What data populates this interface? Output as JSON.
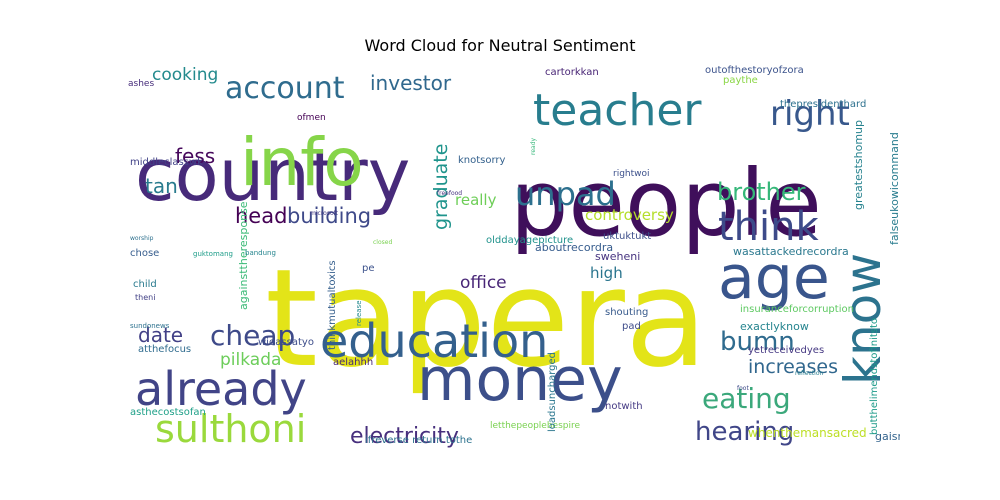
{
  "figure": {
    "title": "Word Cloud for Neutral Sentiment"
  },
  "chart_data": {
    "type": "wordcloud",
    "title": "Word Cloud for Neutral Sentiment",
    "words": [
      {
        "text": "tapera",
        "weight": 100,
        "color": "#e3e418"
      },
      {
        "text": "people",
        "weight": 86,
        "color": "#3f0f5b"
      },
      {
        "text": "country",
        "weight": 70,
        "color": "#472a7a"
      },
      {
        "text": "money",
        "weight": 60,
        "color": "#3c4f8a"
      },
      {
        "text": "education",
        "weight": 48,
        "color": "#34608d"
      },
      {
        "text": "know",
        "weight": 46,
        "color": "#2c738e"
      },
      {
        "text": "info",
        "weight": 46,
        "color": "#86d549"
      },
      {
        "text": "already",
        "weight": 44,
        "color": "#414487"
      },
      {
        "text": "teacher",
        "weight": 42,
        "color": "#287d8e"
      },
      {
        "text": "age",
        "weight": 42,
        "color": "#39558c"
      },
      {
        "text": "think",
        "weight": 38,
        "color": "#3d4a89"
      },
      {
        "text": "sulthoni",
        "weight": 34,
        "color": "#9ad93c"
      },
      {
        "text": "unpad",
        "weight": 32,
        "color": "#2d708e"
      },
      {
        "text": "right",
        "weight": 32,
        "color": "#38588c"
      },
      {
        "text": "account",
        "weight": 30,
        "color": "#2f6c8e"
      },
      {
        "text": "cheap",
        "weight": 28,
        "color": "#3e4a89"
      },
      {
        "text": "eating",
        "weight": 28,
        "color": "#3ba87b"
      },
      {
        "text": "hearing",
        "weight": 26,
        "color": "#404688"
      },
      {
        "text": "bumn",
        "weight": 26,
        "color": "#2f6b8e"
      },
      {
        "text": "brother",
        "weight": 24,
        "color": "#35b779"
      },
      {
        "text": "electricity",
        "weight": 22,
        "color": "#472f7d"
      },
      {
        "text": "building",
        "weight": 21,
        "color": "#3e4989"
      },
      {
        "text": "head",
        "weight": 21,
        "color": "#440154"
      },
      {
        "text": "investor",
        "weight": 20,
        "color": "#30688e"
      },
      {
        "text": "fess",
        "weight": 20,
        "color": "#46085c"
      },
      {
        "text": "tan",
        "weight": 20,
        "color": "#297b8e"
      },
      {
        "text": "date",
        "weight": 20,
        "color": "#424086"
      },
      {
        "text": "increases",
        "weight": 19,
        "color": "#31678e"
      },
      {
        "text": "graduate",
        "weight": 19,
        "color": "#1f948c"
      },
      {
        "text": "cooking",
        "weight": 17,
        "color": "#238a8d"
      },
      {
        "text": "pilkada",
        "weight": 17,
        "color": "#6ccd5a"
      },
      {
        "text": "office",
        "weight": 17,
        "color": "#482677"
      },
      {
        "text": "controversy",
        "weight": 15,
        "color": "#b5de2b"
      },
      {
        "text": "really",
        "weight": 15,
        "color": "#6ece58"
      },
      {
        "text": "high",
        "weight": 15,
        "color": "#2b758e"
      },
      {
        "text": "whenthemansacred",
        "weight": 12,
        "color": "#bddf26"
      },
      {
        "text": "gaisntilight",
        "weight": 11,
        "color": "#33638d"
      },
      {
        "text": "sweheni",
        "weight": 11,
        "color": "#46337f"
      },
      {
        "text": "aboutrecordra",
        "weight": 11,
        "color": "#365c8d"
      },
      {
        "text": "wasattackedrecordra",
        "weight": 11,
        "color": "#2a788e"
      },
      {
        "text": "exactlyknow",
        "weight": 11,
        "color": "#25848e"
      },
      {
        "text": "greatestshomup",
        "weight": 11,
        "color": "#26828e"
      },
      {
        "text": "falseukowicommand",
        "weight": 11,
        "color": "#287c8e"
      },
      {
        "text": "butthelimendstofinitsto",
        "weight": 10,
        "color": "#1e9b8a"
      },
      {
        "text": "againsttheresponse",
        "weight": 11,
        "color": "#3aba76"
      },
      {
        "text": "thinkmutualtoxics",
        "weight": 10,
        "color": "#355f8d"
      },
      {
        "text": "middleclasswk",
        "weight": 10,
        "color": "#414287"
      },
      {
        "text": "ifreverse return tothe",
        "weight": 10,
        "color": "#2c728e"
      },
      {
        "text": "olddayagepicture",
        "weight": 10,
        "color": "#20928c"
      },
      {
        "text": "letthepeoplebespire",
        "weight": 9,
        "color": "#7ad151"
      },
      {
        "text": "outofthestoryofzora",
        "weight": 10,
        "color": "#3b528b"
      },
      {
        "text": "cartorkkan",
        "weight": 10,
        "color": "#482475"
      },
      {
        "text": "thepresidenthard",
        "weight": 10,
        "color": "#2d718e"
      },
      {
        "text": "paythe",
        "weight": 10,
        "color": "#8bd646"
      },
      {
        "text": "insuranceforcorruption",
        "weight": 10,
        "color": "#5ec962"
      },
      {
        "text": "yetreceivedyes",
        "weight": 10,
        "color": "#453882"
      },
      {
        "text": "loadsuncharged",
        "weight": 10,
        "color": "#2a768e"
      },
      {
        "text": "notwith",
        "weight": 10,
        "color": "#443983"
      },
      {
        "text": "uktuktukt",
        "weight": 10,
        "color": "#3d4e8a"
      },
      {
        "text": "knotsorry",
        "weight": 10,
        "color": "#34618d"
      },
      {
        "text": "shouting",
        "weight": 10,
        "color": "#375a8c"
      },
      {
        "text": "pad",
        "weight": 10,
        "color": "#3e4c8a"
      },
      {
        "text": "asthecostsofan",
        "weight": 10,
        "color": "#1fa088"
      },
      {
        "text": "atthefocus",
        "weight": 10,
        "color": "#2f6b8e"
      },
      {
        "text": "widassatyo",
        "weight": 10,
        "color": "#3d4d8a"
      },
      {
        "text": "aelahhh",
        "weight": 10,
        "color": "#482878"
      },
      {
        "text": "child",
        "weight": 10,
        "color": "#297a8e"
      },
      {
        "text": "chose",
        "weight": 10,
        "color": "#365d8d"
      },
      {
        "text": "ashes",
        "weight": 9,
        "color": "#472d7b"
      },
      {
        "text": "ofmen",
        "weight": 9,
        "color": "#440154"
      },
      {
        "text": "rightwoi",
        "weight": 9,
        "color": "#3c508b"
      },
      {
        "text": "pe",
        "weight": 10,
        "color": "#3b518b"
      },
      {
        "text": "theni",
        "weight": 8,
        "color": "#424186"
      },
      {
        "text": "bandung",
        "weight": 7,
        "color": "#25858e"
      },
      {
        "text": "guktomang",
        "weight": 7,
        "color": "#1e9d89"
      },
      {
        "text": "sundonews",
        "weight": 7,
        "color": "#2c718e"
      },
      {
        "text": "release",
        "weight": 7,
        "color": "#23898e"
      },
      {
        "text": "microsoft",
        "weight": 6,
        "color": "#443a83"
      },
      {
        "text": "freefood",
        "weight": 6,
        "color": "#46327e"
      },
      {
        "text": "ready",
        "weight": 6,
        "color": "#35b779"
      },
      {
        "text": "reflection",
        "weight": 6,
        "color": "#287d8e"
      },
      {
        "text": "foot",
        "weight": 6,
        "color": "#3e4a89"
      },
      {
        "text": "worship",
        "weight": 6,
        "color": "#2d708e"
      },
      {
        "text": "closed",
        "weight": 6,
        "color": "#7ad151"
      }
    ]
  }
}
